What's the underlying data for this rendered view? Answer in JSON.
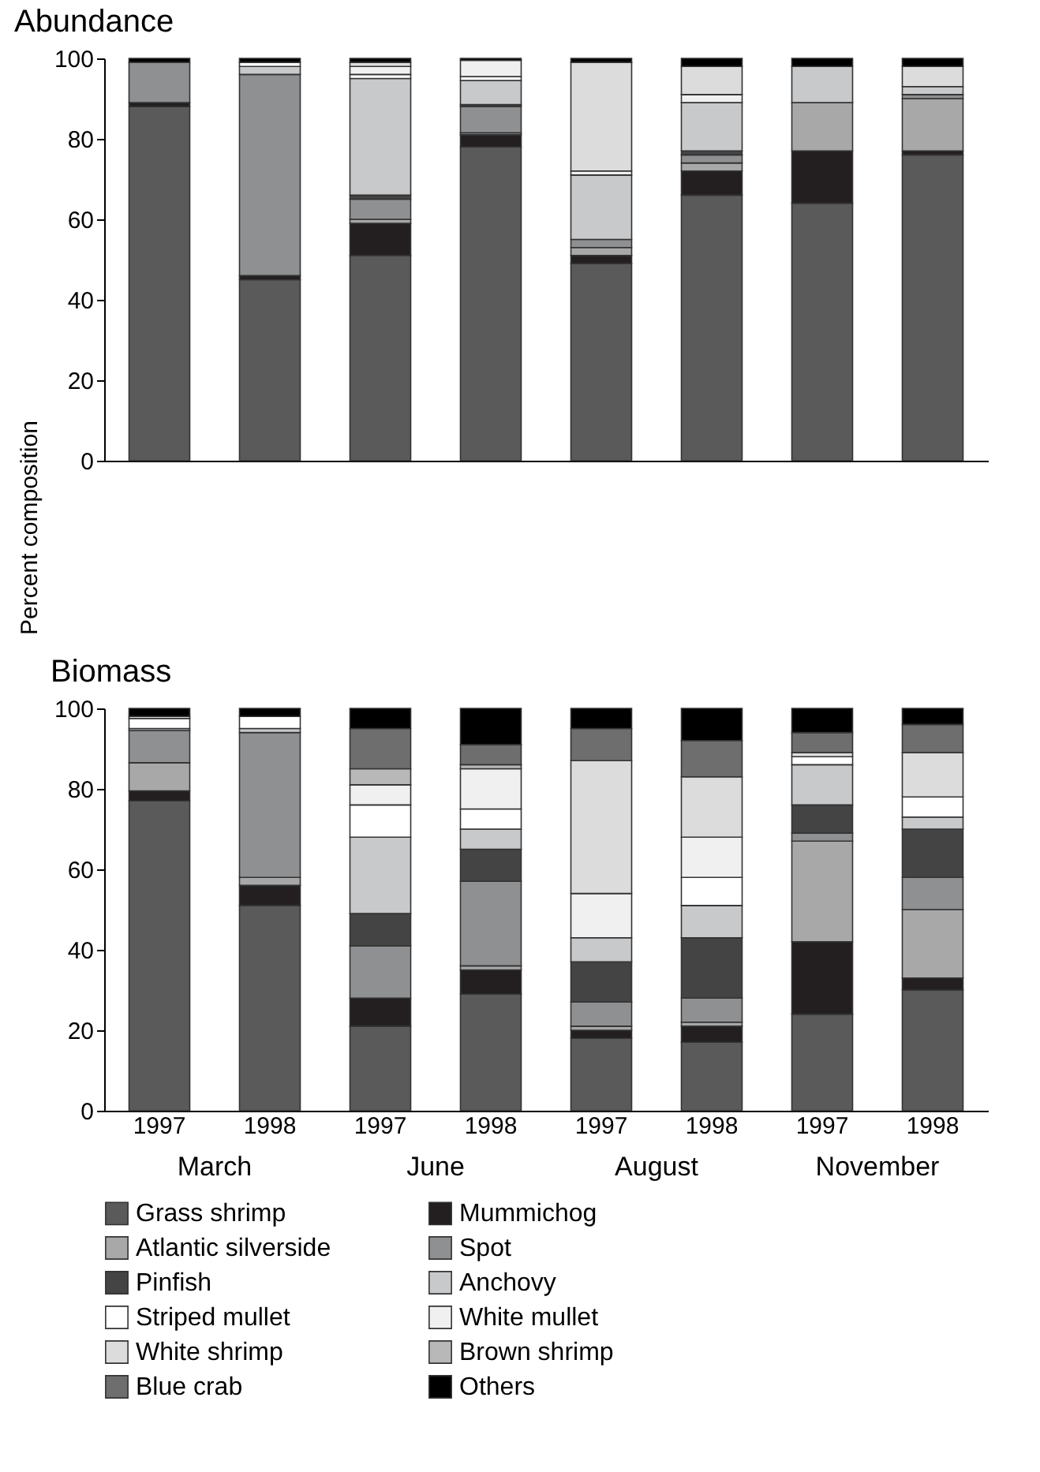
{
  "chart_data": [
    {
      "type": "bar",
      "title": "Abundance",
      "ylabel": "Percent composition",
      "stacked": true,
      "legend": false,
      "tick_labels": "y",
      "categories": [
        "1997",
        "1998",
        "1997",
        "1998",
        "1997",
        "1998",
        "1997",
        "1998"
      ],
      "ylim": [
        0,
        100
      ],
      "yticks": [
        0,
        20,
        40,
        60,
        80,
        100
      ],
      "grid": false,
      "series": [
        {
          "color": "#5a5a5a",
          "values": [
            88,
            45,
            51,
            78,
            49,
            66,
            64,
            76
          ]
        },
        {
          "color": "#231f20",
          "values": [
            1,
            1,
            8,
            3,
            2,
            6,
            13,
            1
          ]
        },
        {
          "color": "#a8a8a8",
          "values": [
            0,
            0,
            1,
            0.5,
            2,
            2,
            12,
            13
          ]
        },
        {
          "color": "#8f9092",
          "values": [
            10,
            50,
            5,
            6.5,
            2,
            2,
            0,
            1
          ]
        },
        {
          "color": "#444444",
          "values": [
            0,
            0,
            1,
            0.5,
            0,
            1,
            0,
            0
          ]
        },
        {
          "color": "#c8c9cb",
          "values": [
            0,
            2,
            29,
            6,
            16,
            12,
            9,
            2
          ]
        },
        {
          "color": "#ffffff",
          "values": [
            0,
            1,
            1,
            1,
            0,
            0,
            0,
            0
          ]
        },
        {
          "color": "#f0f0f0",
          "values": [
            0,
            0,
            2,
            4,
            1,
            2,
            0,
            0
          ]
        },
        {
          "color": "#dcdcdc",
          "values": [
            0,
            0,
            1,
            0,
            27,
            7,
            0,
            5
          ]
        },
        {
          "color": "#000000",
          "values": [
            1,
            1,
            1,
            0.5,
            1,
            2,
            2,
            2
          ]
        }
      ]
    },
    {
      "type": "bar",
      "title": "Biomass",
      "stacked": true,
      "legend": "bottom",
      "categories": [
        "1997",
        "1998",
        "1997",
        "1998",
        "1997",
        "1998",
        "1997",
        "1998"
      ],
      "annotations": [
        "March",
        "June",
        "August",
        "November"
      ],
      "ylim": [
        0,
        100
      ],
      "yticks": [
        0,
        20,
        40,
        60,
        80,
        100
      ],
      "grid": false,
      "series": [
        {
          "name": "Grass shrimp",
          "color": "#5a5a5a",
          "values": [
            77,
            51,
            21,
            29,
            18,
            17,
            24,
            30
          ]
        },
        {
          "name": "Mummichog",
          "color": "#231f20",
          "values": [
            2.5,
            5,
            7,
            6,
            2,
            4,
            18,
            3
          ]
        },
        {
          "name": "Atlantic silverside",
          "color": "#a8a8a8",
          "values": [
            7,
            2,
            0,
            1,
            1,
            1,
            25,
            17
          ]
        },
        {
          "name": "Spot",
          "color": "#8f9092",
          "values": [
            8,
            36,
            13,
            21,
            6,
            6,
            2,
            8
          ]
        },
        {
          "name": "Pinfish",
          "color": "#444444",
          "values": [
            0,
            0,
            8,
            8,
            10,
            15,
            7,
            12
          ]
        },
        {
          "name": "Anchovy",
          "color": "#c8c9cb",
          "values": [
            0.5,
            1,
            19,
            5,
            6,
            8,
            10,
            3
          ]
        },
        {
          "name": "Striped mullet",
          "color": "#ffffff",
          "values": [
            2.5,
            3,
            8,
            5,
            0,
            7,
            2,
            5
          ]
        },
        {
          "name": "White mullet",
          "color": "#f0f0f0",
          "values": [
            0,
            0,
            5,
            10,
            11,
            10,
            0,
            0
          ]
        },
        {
          "name": "White shrimp",
          "color": "#dcdcdc",
          "values": [
            0.5,
            0,
            0,
            0,
            33,
            15,
            1,
            11
          ]
        },
        {
          "name": "Brown shrimp",
          "color": "#b8b8b8",
          "values": [
            0,
            0,
            4,
            1,
            0,
            0,
            0,
            0
          ]
        },
        {
          "name": "Blue crab",
          "color": "#6e6e6e",
          "values": [
            0,
            0,
            10,
            5,
            8,
            9,
            5,
            7
          ]
        },
        {
          "name": "Others",
          "color": "#000000",
          "values": [
            2,
            2,
            5,
            9,
            5,
            8,
            6,
            4
          ]
        }
      ]
    }
  ]
}
